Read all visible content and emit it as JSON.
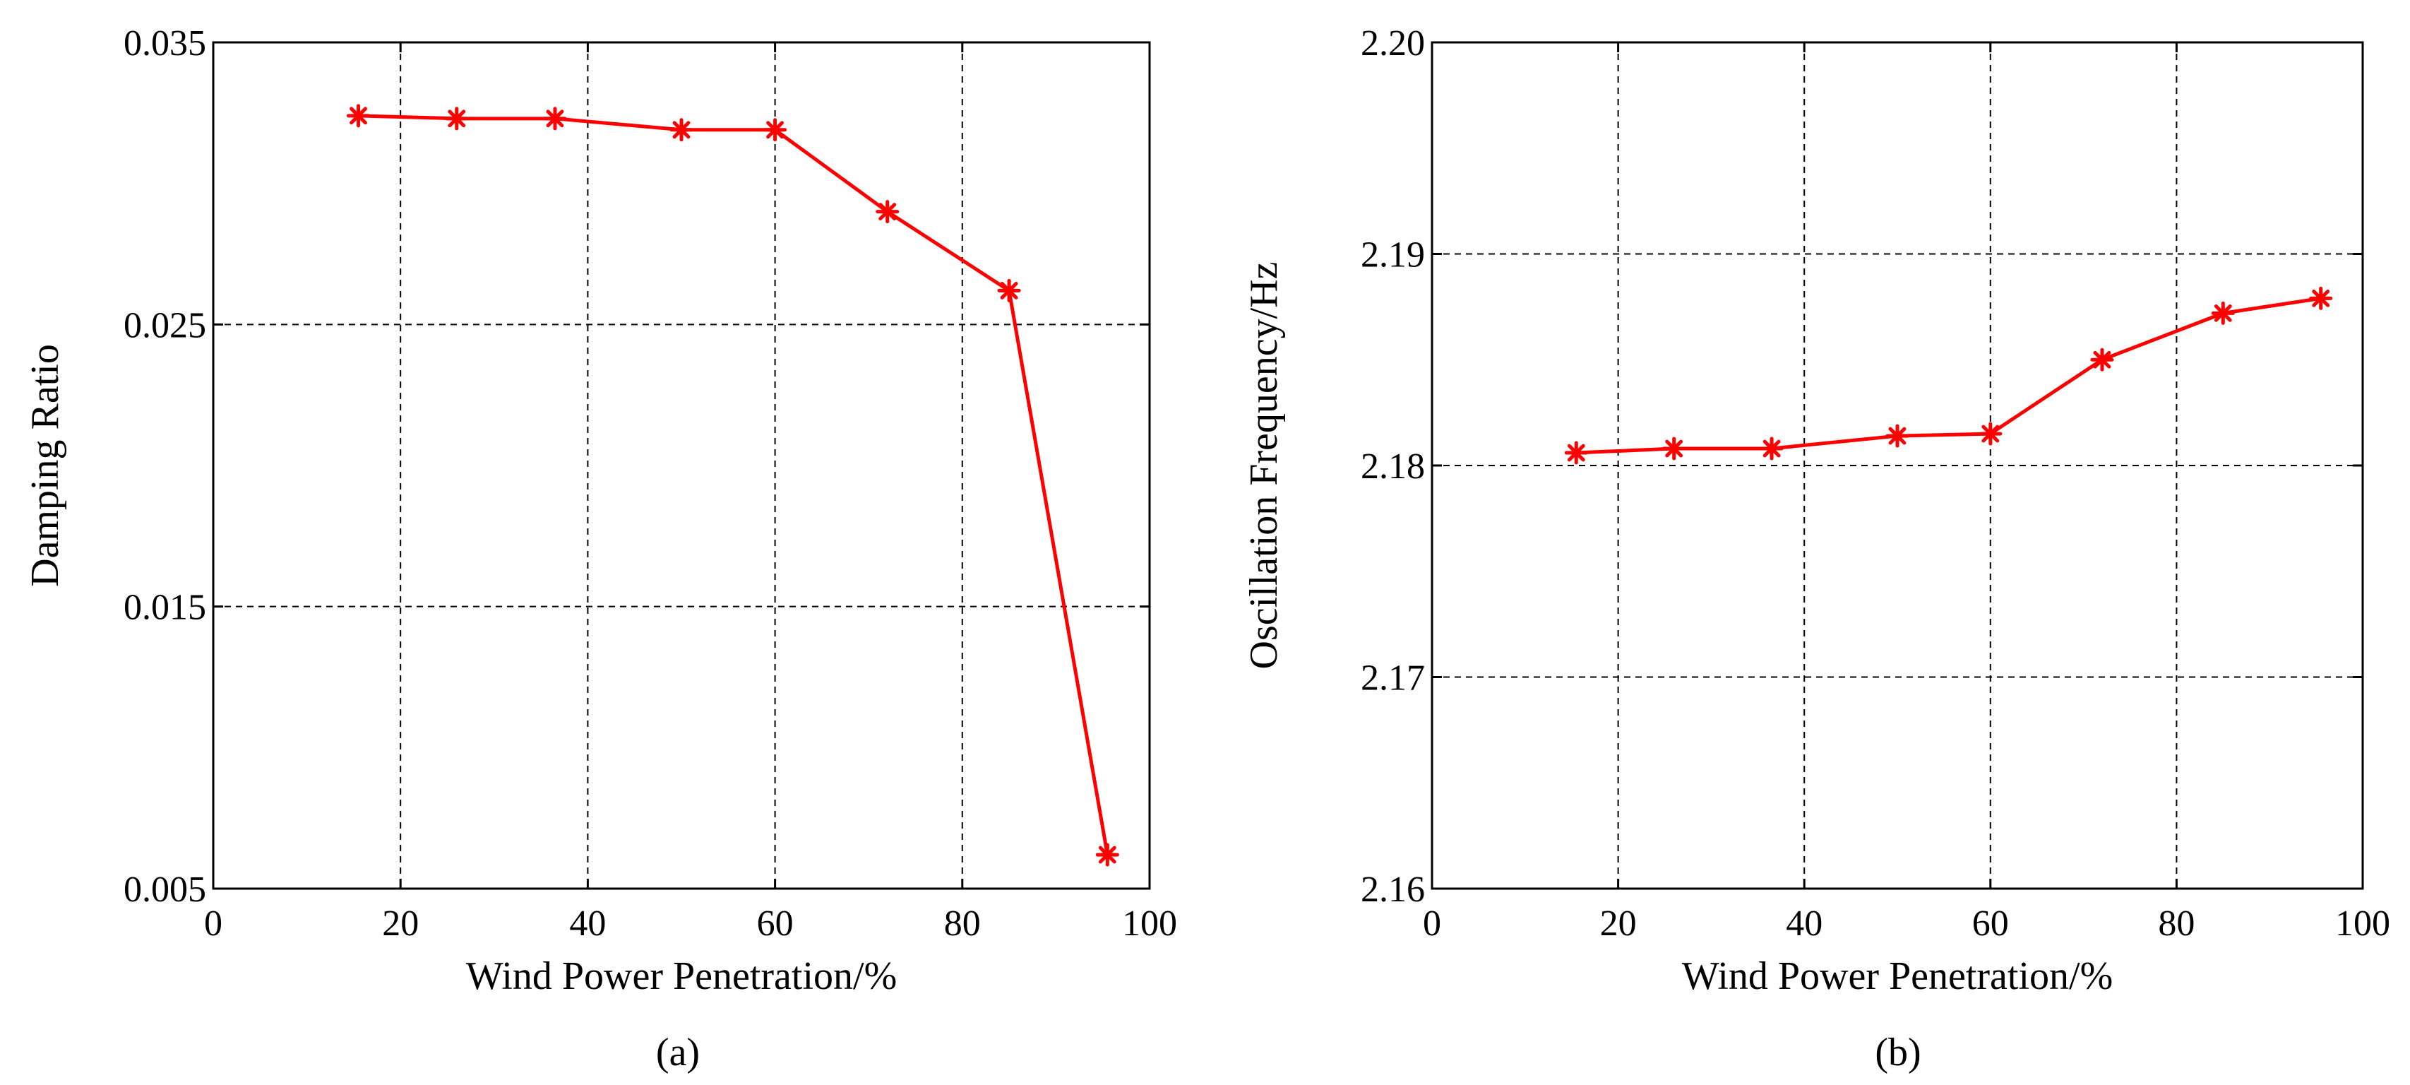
{
  "chart_data": [
    {
      "type": "line",
      "panel_label": "(a)",
      "xlabel": "Wind Power Penetration/%",
      "ylabel": "Damping Ratio",
      "xlim": [
        0,
        100
      ],
      "ylim": [
        0.005,
        0.035
      ],
      "xticks": [
        0,
        20,
        40,
        60,
        80,
        100
      ],
      "xtick_labels": [
        "0",
        "20",
        "40",
        "60",
        "80",
        "100"
      ],
      "yticks": [
        0.005,
        0.015,
        0.025,
        0.035
      ],
      "ytick_labels": [
        "0.005",
        "0.015",
        "0.025",
        "0.035"
      ],
      "grid": true,
      "series": [
        {
          "name": "Damping Ratio",
          "color": "#ff0000",
          "marker": "asterisk",
          "x": [
            15.5,
            26,
            36.5,
            50,
            60,
            72,
            85,
            95.5
          ],
          "values": [
            0.0324,
            0.0323,
            0.0323,
            0.0319,
            0.0319,
            0.029,
            0.0262,
            0.0062
          ]
        }
      ]
    },
    {
      "type": "line",
      "panel_label": "(b)",
      "xlabel": "Wind Power Penetration/%",
      "ylabel": "Oscillation Frequency/Hz",
      "xlim": [
        0,
        100
      ],
      "ylim": [
        2.16,
        2.2
      ],
      "xticks": [
        0,
        20,
        40,
        60,
        80,
        100
      ],
      "xtick_labels": [
        "0",
        "20",
        "40",
        "60",
        "80",
        "100"
      ],
      "yticks": [
        2.16,
        2.17,
        2.18,
        2.19,
        2.2
      ],
      "ytick_labels": [
        "2.16",
        "2.17",
        "2.18",
        "2.19",
        "2.20"
      ],
      "grid": true,
      "series": [
        {
          "name": "Oscillation Frequency",
          "color": "#ff0000",
          "marker": "asterisk",
          "x": [
            15.5,
            26,
            36.5,
            50,
            60,
            72,
            85,
            95.5
          ],
          "values": [
            2.1806,
            2.1808,
            2.1808,
            2.1814,
            2.1815,
            2.185,
            2.1872,
            2.1879
          ]
        }
      ]
    }
  ]
}
